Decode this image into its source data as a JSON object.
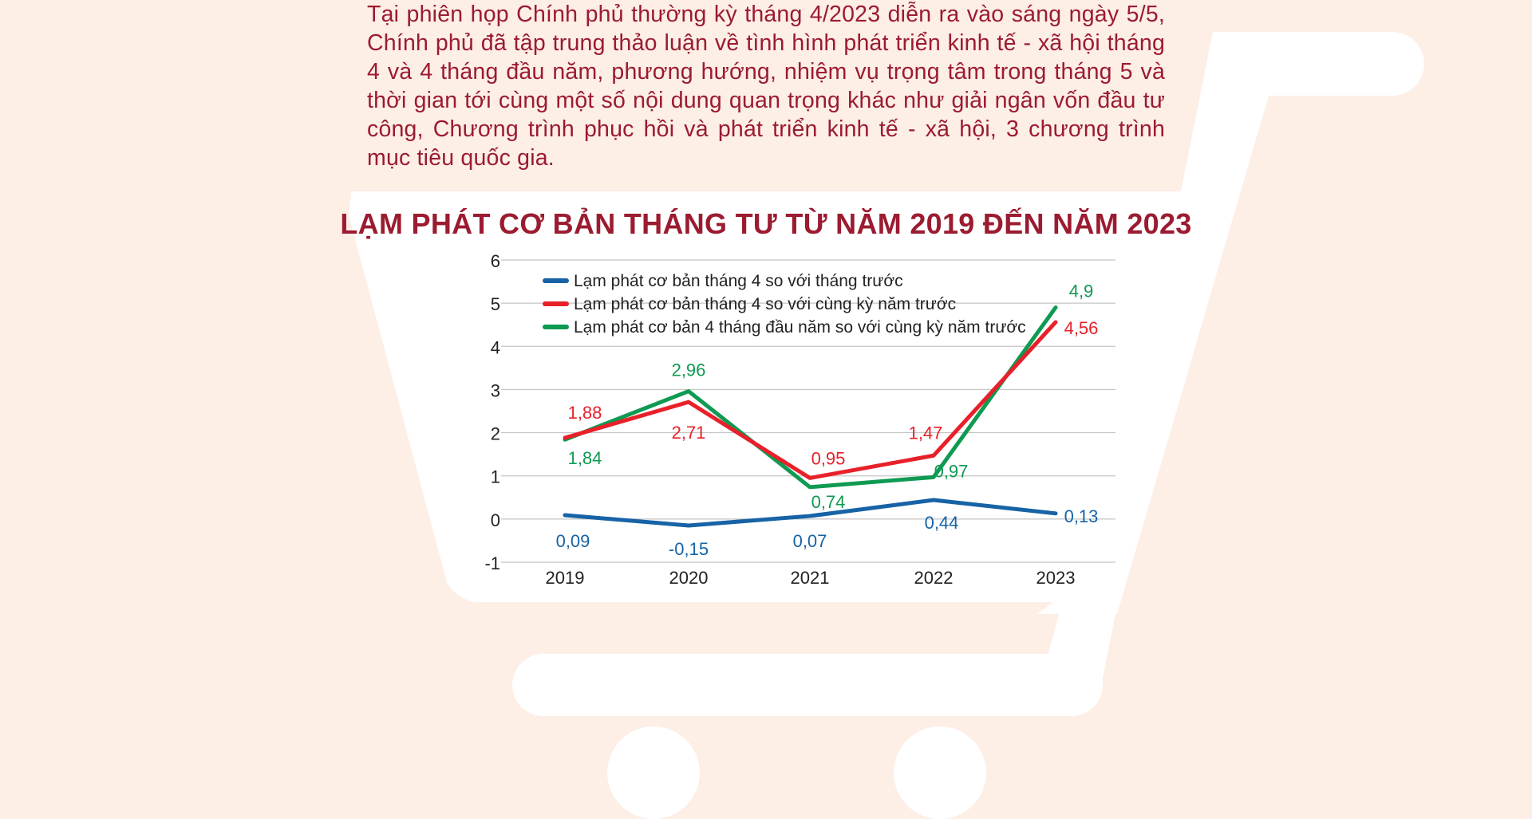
{
  "intro_text": "Tại phiên họp Chính phủ thường kỳ tháng 4/2023 diễn ra vào sáng ngày 5/5, Chính phủ đã tập trung thảo luận về tình hình phát triển kinh tế - xã hội tháng 4 và 4 tháng đầu năm, phương hướng, nhiệm vụ trọng tâm trong tháng 5 và thời gian tới cùng một số nội dung quan trọng khác như giải ngân vốn đầu tư công, Chương trình phục hồi và phát triển kinh tế - xã hội, 3 chương trình mục tiêu quốc gia.",
  "colors": {
    "background": "#fdeee6",
    "cart": "#ffffff",
    "accent": "#9b1b30"
  },
  "chart_data": {
    "type": "line",
    "title": "LẠM PHÁT CƠ BẢN THÁNG TƯ TỪ NĂM 2019 ĐẾN NĂM 2023",
    "categories": [
      "2019",
      "2020",
      "2021",
      "2022",
      "2023"
    ],
    "ylim": [
      -1,
      6
    ],
    "yticks": [
      "6",
      "5",
      "4",
      "3",
      "2",
      "1",
      "0",
      "-1"
    ],
    "grid": true,
    "legend_position": "top-left",
    "series": [
      {
        "name": "Lạm phát cơ bản tháng 4 so với tháng trước",
        "color": "#1763a6",
        "values": [
          0.09,
          -0.15,
          0.07,
          0.44,
          0.13
        ],
        "labels": [
          "0,09",
          "-0,15",
          "0,07",
          "0,44",
          "0,13"
        ]
      },
      {
        "name": "Lạm phát cơ bản tháng 4 so với cùng kỳ năm trước",
        "color": "#e8202a",
        "values": [
          1.88,
          2.71,
          0.95,
          1.47,
          4.56
        ],
        "labels": [
          "1,88",
          "2,71",
          "0,95",
          "1,47",
          "4,56"
        ]
      },
      {
        "name": "Lạm phát cơ bản 4 tháng đầu năm so với cùng kỳ năm trước",
        "color": "#0f9a52",
        "values": [
          1.84,
          2.96,
          0.74,
          0.97,
          4.9
        ],
        "labels": [
          "1,84",
          "2,96",
          "0,74",
          "0,97",
          "4,9"
        ]
      }
    ]
  }
}
